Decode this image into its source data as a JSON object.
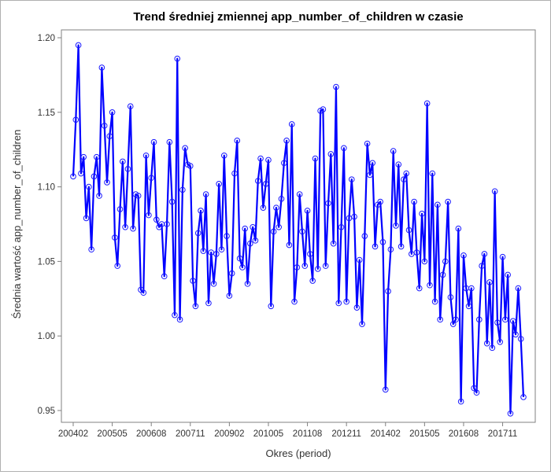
{
  "chart_data": {
    "type": "line",
    "title": "Trend średniej zmiennej app_number_of_children w czasie",
    "xlabel": "Okres (period)",
    "ylabel": "Średnia wartość app_number_of_children",
    "ylim": [
      0.945,
      1.2
    ],
    "yticks": [
      "0.95",
      "1.00",
      "1.05",
      "1.10",
      "1.15",
      "1.20"
    ],
    "xticks": [
      "200402",
      "200505",
      "200608",
      "200711",
      "200902",
      "201005",
      "201108",
      "201211",
      "201402",
      "201505",
      "201608",
      "201711"
    ],
    "grid": false,
    "legend": "none",
    "line_color": "#0000ff",
    "series": [
      {
        "values": [
          1.107,
          1.145,
          1.195,
          1.109,
          1.12,
          1.079,
          1.1,
          1.058,
          1.107,
          1.12,
          1.094,
          1.18,
          1.141,
          1.103,
          1.134,
          1.15,
          1.066,
          1.047,
          1.085,
          1.117,
          1.073,
          1.112,
          1.154,
          1.072,
          1.095,
          1.094,
          1.031,
          1.029,
          1.121,
          1.081,
          1.106,
          1.13,
          1.078,
          1.073,
          1.075,
          1.04,
          1.075,
          1.13,
          1.09,
          1.014,
          1.186,
          1.011,
          1.098,
          1.126,
          1.115,
          1.114,
          1.037,
          1.02,
          1.069,
          1.084,
          1.057,
          1.095,
          1.022,
          1.056,
          1.035,
          1.055,
          1.102,
          1.058,
          1.121,
          1.067,
          1.027,
          1.042,
          1.109,
          1.131,
          1.052,
          1.046,
          1.072,
          1.035,
          1.062,
          1.073,
          1.064,
          1.104,
          1.119,
          1.086,
          1.102,
          1.118,
          1.02,
          1.07,
          1.086,
          1.073,
          1.092,
          1.116,
          1.131,
          1.061,
          1.142,
          1.023,
          1.046,
          1.095,
          1.07,
          1.047,
          1.084,
          1.055,
          1.037,
          1.119,
          1.045,
          1.151,
          1.152,
          1.047,
          1.089,
          1.122,
          1.062,
          1.167,
          1.022,
          1.073,
          1.126,
          1.023,
          1.079,
          1.105,
          1.08,
          1.019,
          1.051,
          1.008,
          1.067,
          1.129,
          1.108,
          1.116,
          1.06,
          1.088,
          1.09,
          1.063,
          0.964,
          1.03,
          1.058,
          1.124,
          1.074,
          1.115,
          1.06,
          1.105,
          1.109,
          1.071,
          1.055,
          1.09,
          1.056,
          1.032,
          1.082,
          1.05,
          1.156,
          1.034,
          1.109,
          1.023,
          1.088,
          1.011,
          1.041,
          1.05,
          1.09,
          1.026,
          1.008,
          1.011,
          1.072,
          0.956,
          1.054,
          1.032,
          1.02,
          1.032,
          0.965,
          0.962,
          1.011,
          1.047,
          1.055,
          0.995,
          1.036,
          0.992,
          1.097,
          1.009,
          0.996,
          1.053,
          1.011,
          1.041,
          0.948,
          1.01,
          1.001,
          1.032,
          0.998,
          0.959
        ]
      }
    ]
  }
}
